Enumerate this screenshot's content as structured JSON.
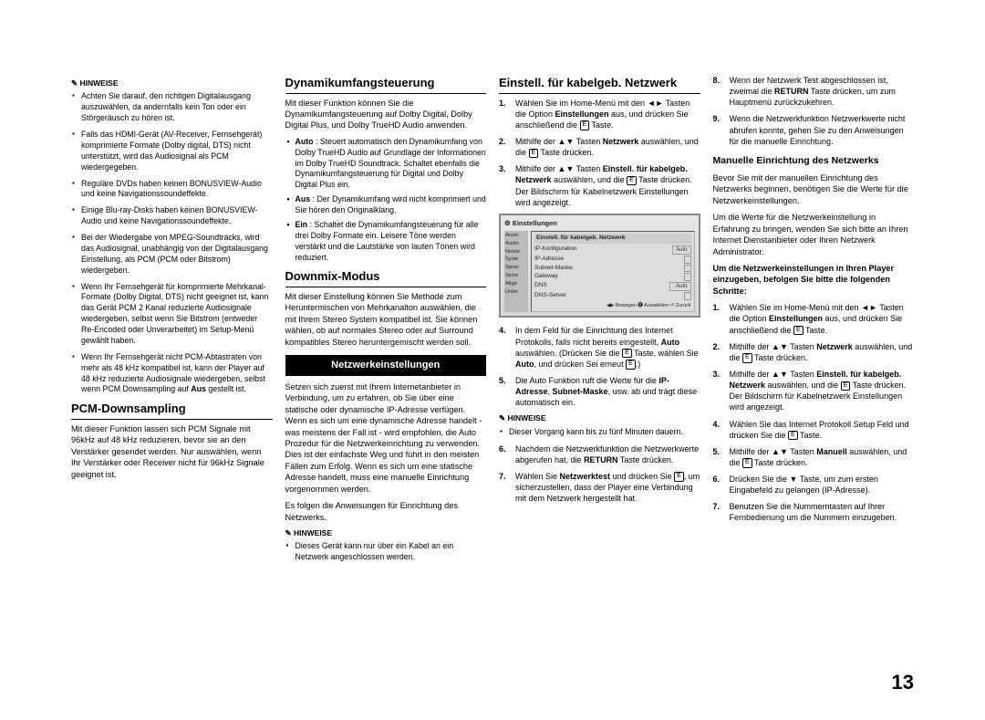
{
  "page_number": "13",
  "col1": {
    "hinweise_label": "HINWEISE",
    "hinweise": [
      "Achten Sie darauf, den richtigen Digitalausgang auszuwählen, da andernfalls kein Ton oder ein Störgeräusch zu hören ist.",
      "Falls das HDMI-Gerät (AV-Receiver, Fernsehgerät) komprimierte Formate (Dolby digital, DTS) nicht unterstützt, wird das Audiosignal als PCM wiedergegeben.",
      "Reguläre DVDs haben keinen BONUSVIEW-Audio und keine Navigationssoundeffekte.",
      "Einige Blu-ray-Disks haben keinen BONUSVIEW-Audio und keine Navigationssoundeffekte.",
      "Bei der Wiedergabe von MPEG-Soundtracks, wird das Audiosignal, unabhängig von der Digitalausgang Einstellung, als PCM (PCM oder Bitstrom) wiedergeben.",
      "Wenn Ihr Fernsehgerät für komprimierte Mehrkanal-Formate (Dolby Digital, DTS) nicht geeignet ist, kann das Gerät PCM 2 Kanal reduzierte Audiosignale wiedergeben, selbst wenn Sie Bitstrom (entweder Re-Encoded oder Unverarbeitet) im Setup-Menü gewählt haben.",
      "Wenn Ihr Fernsehgerät nicht PCM-Abtastraten von mehr als 48 kHz kompatibel ist, kann der Player auf 48 kHz reduzierte Audiosignale wiedergeben, selbst wenn PCM Downsampling auf Aus gestellt ist."
    ],
    "h2_pcm": "PCM-Downsampling",
    "pcm_text": "Mit dieser Funktion lassen sich PCM Signale mit 96kHz auf 48 kHz reduzieren, bevor sie an den Verstärker gesendet werden. Nur auswählen, wenn Ihr Verstärker oder Receiver nicht für 96kHz Signale geeignet ist."
  },
  "col2": {
    "h2_dyn": "Dynamikumfangsteuerung",
    "dyn_text": "Mit dieser Funktion können Sie die Dynamikumfangsteuerung auf Dolby Digital, Dolby Digital Plus, und Dolby TrueHD Audio anwenden.",
    "dyn_items": [
      {
        "label": "Auto",
        "text": " : Steuert automatisch den Dynamikumfang von Dolby TrueHD Audio auf Grundlage der Informationen im Dolby TrueHD Soundtrack. Schaltet ebenfalls die Dynamikumfangsteuerung für Digital und Dolby Digital Plus ein."
      },
      {
        "label": "Aus",
        "text": " : Der Dynamikumfang wird nicht komprimiert und Sie hören den Originalklang."
      },
      {
        "label": "Ein",
        "text": " : Schaltet die Dynamikumfangsteuerung für alle drei Dolby Formate ein. Leisere Töne werden verstärkt und die Lautstärke von lauten Tönen wird reduziert."
      }
    ],
    "h2_down": "Downmix-Modus",
    "down_text": "Mit dieser Einstellung können Sie Methode zum Heruntermischen von Mehrkanalton auswählen, die mit Ihrem Stereo System kompatibel ist. Sie können wählen, ob auf normales Stereo oder auf Surround kompatibles Stereo heruntergemischt werden soll.",
    "banner": "Netzwerkeinstellungen",
    "net_p1": "Setzen sich zuerst mit Ihrem Internetanbieter in Verbindung, um zu erfahren, ob Sie über eine statische oder dynamische IP-Adresse verfügen. Wenn es sich um eine dynamische Adresse handelt - was meistens der Fall ist - wird empfohlen, die Auto Prozedur für die Netzwerkeinrichtung zu verwenden. Dies ist der einfachste Weg und führt in den meisten Fällen zum Erfolg. Wenn es sich um eine statische Adresse handelt, muss eine manuelle Einrichtung vorgenommen werden.",
    "net_p2": "Es folgen die Anweisungen für Einrichtung des Netzwerks.",
    "hinweise_label": "HINWEISE",
    "net_note": "Dieses Gerät kann nur über ein Kabel an ein Netzwerk angeschlossen werden."
  },
  "col3": {
    "h2_kabel": "Einstell. für kabelgeb. Netzwerk",
    "steps_a": [
      "Wählen Sie im Home-Menü mit den ◄► Tasten die Option Einstellungen aus, und drücken Sie anschließend die 🅔 Taste.",
      "Mithilfe der ▲▼ Tasten Netzwerk auswählen, und die 🅔 Taste drücken.",
      "Mithilfe der ▲▼ Tasten Einstell. für kabelgeb. Netzwerk auswählen, und die 🅔 Taste drücken. Der Bildschirm für Kabelnetzwerk Einstellungen wird angezeigt."
    ],
    "panel": {
      "title": "Einstellungen",
      "header": "Einstell. für kabelgeb. Netzwerk",
      "side": [
        "Anzei",
        "Audio",
        "Netzw",
        "Syste",
        "Sprac",
        "Siche",
        "Allge",
        "Unter"
      ],
      "rows": [
        [
          "IP-Konfiguration",
          "Auto"
        ],
        [
          "IP-Adresse",
          ""
        ],
        [
          "Subnet-Maske",
          ""
        ],
        [
          "Gateway",
          ""
        ],
        [
          "DNS",
          ": Auto"
        ],
        [
          "DNS-Server",
          ""
        ]
      ],
      "foot": "◀▶ Bewegen  🅔 Auswählen  ⏎ Zurück"
    },
    "steps_b": [
      "In dem Feld für die Einrichtung des Internet Protokolls, falls nicht bereits eingestellt, Auto auswählen. (Drücken Sie die 🅔 Taste, wählen Sie Auto, und drücken Sei erneut 🅔.)",
      "Die Auto Funktion ruft die Werte für die IP-Adresse, Subnet-Maske, usw. ab und trägt diese automatisch ein."
    ],
    "hinweise_label": "HINWEISE",
    "note": "Dieser Vorgang kann bis zu fünf Minuten dauern.",
    "steps_c": [
      "Nachdem die Netzwerkfunktion die Netzwerkwerte abgerufen hat, die RETURN Taste drücken.",
      "Wählen Sie Netzwerktest und drücken Sie 🅔, um sicherzustellen, dass der Player eine Verbindung mit dem Netzwerk hergestellt hat."
    ]
  },
  "col4": {
    "steps_d": [
      "Wenn der Netzwerk Test abgeschlossen ist, zweimal die RETURN Taste drücken, um zum Hauptmenü zurückzukehren.",
      "Wenn die Netzwerkfunktion Netzwerkwerte nicht abrufen konnte, gehen Sie zu den Anweisungen für die manuelle Einrichtung."
    ],
    "h3_manual": "Manuelle Einrichtung des Netzwerks",
    "man_p1": "Bevor Sie mit der manuellen Einrichtung des Netzwerks beginnen, benötigen Sie die Werte für die Netzwerkeinstellungen.",
    "man_p2": "Um die Werte für die Netzwerkeinstellung in Erfahrung zu bringen, wenden Sie sich bitte an Ihren Internet Dienstanbieter oder Ihren Netzwerk Administrator.",
    "man_bold": "Um die Netzwerkeinstellungen in Ihren Player einzugeben, befolgen Sie bitte die folgenden Schritte:",
    "man_steps": [
      "Wählen Sie im Home-Menü mit den ◄► Tasten die Option Einstellungen aus, und drücken Sie anschließend die 🅔 Taste.",
      "Mithilfe der ▲▼ Tasten Netzwerk auswählen, und die 🅔 Taste drücken.",
      "Mithilfe der ▲▼ Tasten Einstell. für kabelgeb. Netzwerk auswählen, und die 🅔 Taste drücken. Der Bildschirm für Kabelnetzwerk Einstellungen wird angezeigt.",
      "Wählen Sie das Internet Protokoll Setup Feld und drücken Sie die 🅔 Taste.",
      "Mithilfe der ▲▼ Tasten Manuell auswählen, und die 🅔 Taste drücken.",
      "Drücken Sie die ▼ Taste, um zum ersten Eingabefeld zu gelangen (IP-Adresse).",
      "Benutzen Sie die Nummerntasten auf Ihrer Fernbedienung um die Nummern einzugeben."
    ]
  }
}
